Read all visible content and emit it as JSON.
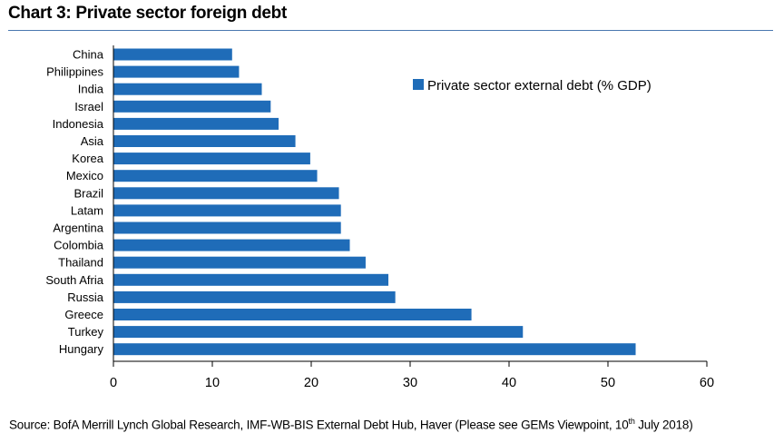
{
  "header": {
    "title": "Chart 3: Private sector foreign debt"
  },
  "footer": {
    "source_text": "Source: BofA Merrill Lynch Global Research, IMF-WB-BIS External Debt Hub, Haver (Please see GEMs Viewpoint, 10",
    "source_sup": "th",
    "source_tail": " July 2018)"
  },
  "colors": {
    "bar": "#1f6cb8",
    "title_rule": "#4a78b0"
  },
  "chart_data": {
    "type": "bar",
    "orientation": "horizontal",
    "title": "Chart 3: Private sector foreign debt",
    "xlabel": "",
    "ylabel": "",
    "xlim": [
      0,
      60
    ],
    "xticks": [
      0,
      10,
      20,
      30,
      40,
      50,
      60
    ],
    "grid": false,
    "legend_position": "top-right",
    "categories": [
      "China",
      "Philippines",
      "India",
      "Israel",
      "Indonesia",
      "Asia",
      "Korea",
      "Mexico",
      "Brazil",
      "Latam",
      "Argentina",
      "Colombia",
      "Thailand",
      "South Afria",
      "Russia",
      "Greece",
      "Turkey",
      "Hungary"
    ],
    "series": [
      {
        "name": "Private sector external debt (% GDP)",
        "values": [
          12.0,
          12.7,
          15.0,
          15.9,
          16.7,
          18.4,
          19.9,
          20.6,
          22.8,
          23.0,
          23.0,
          23.9,
          25.5,
          27.8,
          28.5,
          36.2,
          41.4,
          52.8
        ]
      }
    ]
  }
}
